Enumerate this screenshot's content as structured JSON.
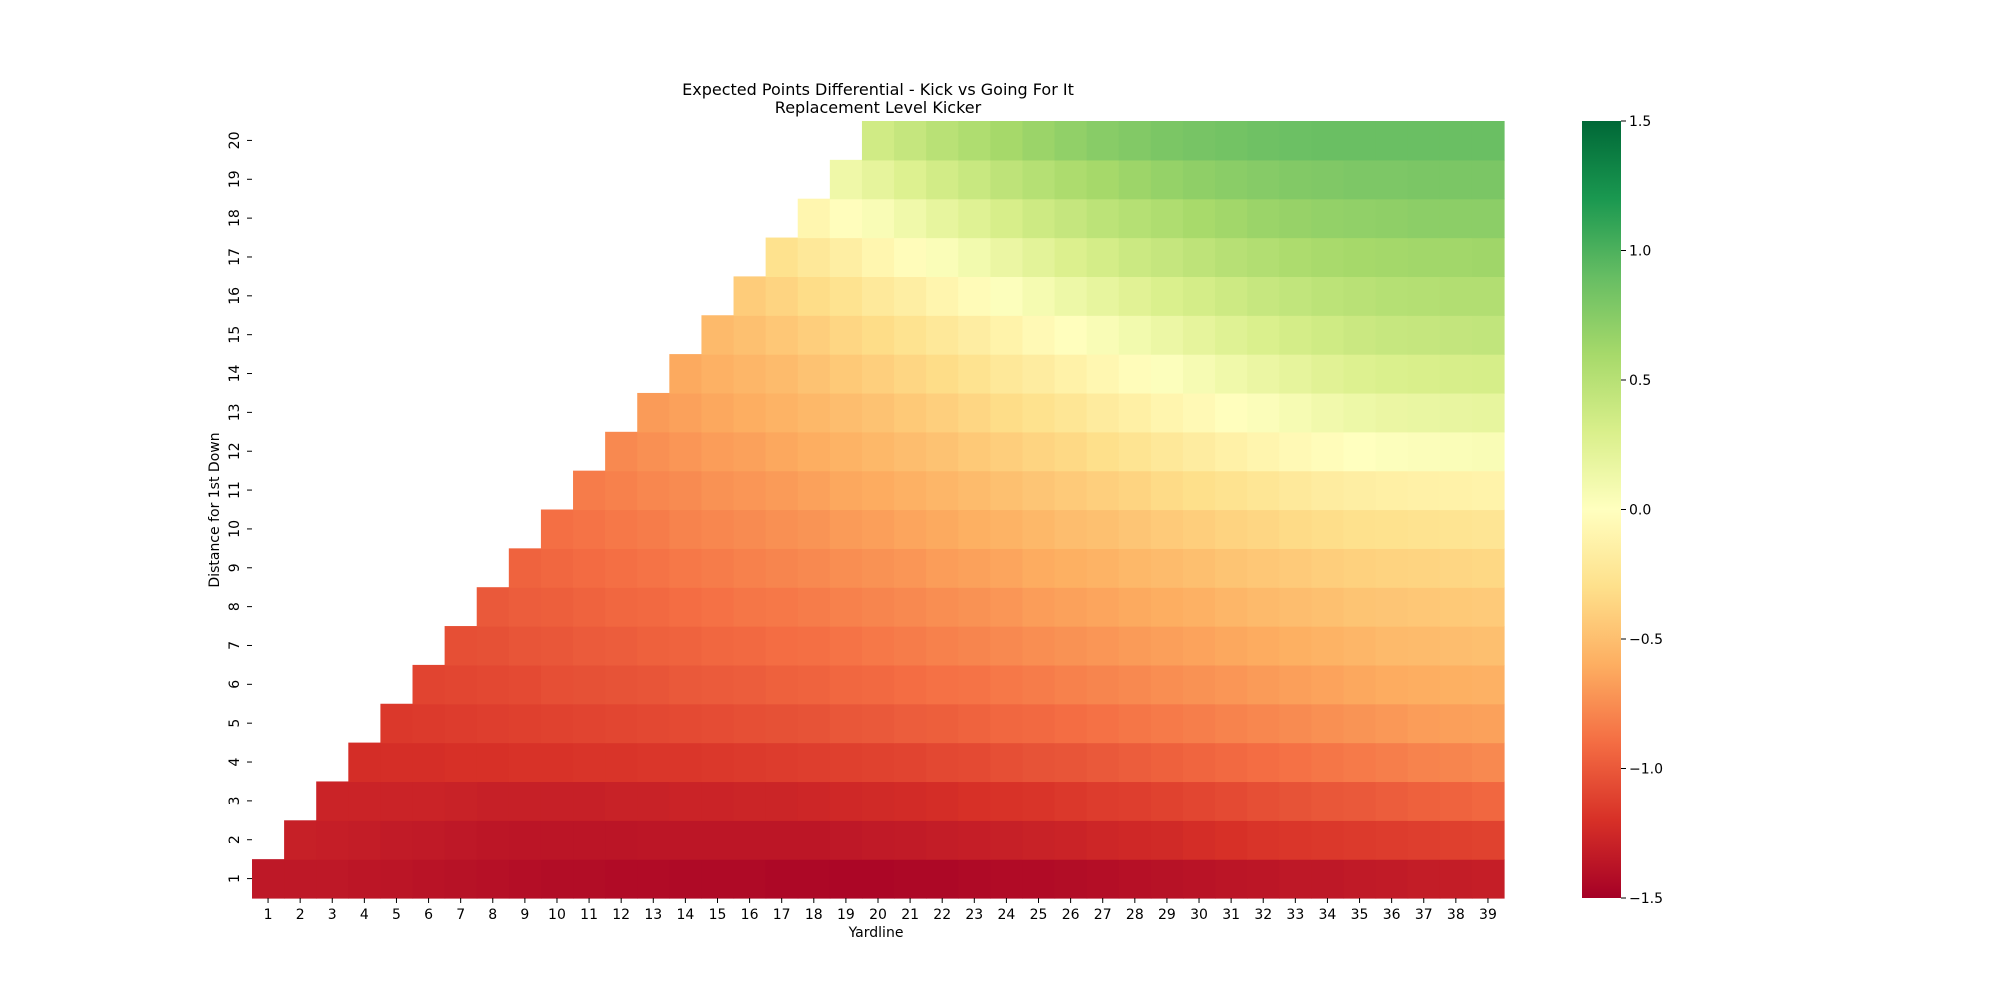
{
  "chart_data": {
    "type": "heatmap",
    "title": "Expected Points Differential - Kick vs Going For It",
    "subtitle": "Replacement Level Kicker",
    "xlabel": "Yardline",
    "ylabel": "Distance for 1st Down",
    "x": [
      1,
      2,
      3,
      4,
      5,
      6,
      7,
      8,
      9,
      10,
      11,
      12,
      13,
      14,
      15,
      16,
      17,
      18,
      19,
      20,
      21,
      22,
      23,
      24,
      25,
      26,
      27,
      28,
      29,
      30,
      31,
      32,
      33,
      34,
      35,
      36,
      37,
      38,
      39
    ],
    "y": [
      1,
      2,
      3,
      4,
      5,
      6,
      7,
      8,
      9,
      10,
      11,
      12,
      13,
      14,
      15,
      16,
      17,
      18,
      19,
      20
    ],
    "cells_shown_rule": "yardline >= distance",
    "colormap": "RdYlGn",
    "vmin": -1.5,
    "vmax": 1.5,
    "colorbar_ticks": [
      "1.5",
      "1.0",
      "0.5",
      "0.0",
      "−0.5",
      "−1.0",
      "−1.5"
    ],
    "colorbar_tick_values": [
      1.5,
      1.0,
      0.5,
      0.0,
      -0.5,
      -1.0,
      -1.5
    ],
    "rows": {
      "1": [
        -1.35,
        -1.35,
        -1.35,
        -1.36,
        -1.37,
        -1.38,
        -1.39,
        -1.4,
        -1.41,
        -1.42,
        -1.42,
        -1.43,
        -1.43,
        -1.44,
        -1.44,
        -1.44,
        -1.45,
        -1.45,
        -1.46,
        -1.46,
        -1.45,
        -1.45,
        -1.44,
        -1.43,
        -1.43,
        -1.42,
        -1.41,
        -1.4,
        -1.39,
        -1.38,
        -1.37,
        -1.36,
        -1.35,
        -1.35,
        -1.34,
        -1.33,
        -1.32,
        -1.32,
        -1.31
      ],
      "2": [
        null,
        -1.3,
        -1.31,
        -1.32,
        -1.33,
        -1.34,
        -1.35,
        -1.36,
        -1.37,
        -1.37,
        -1.37,
        -1.37,
        -1.36,
        -1.36,
        -1.36,
        -1.36,
        -1.36,
        -1.36,
        -1.35,
        -1.34,
        -1.33,
        -1.32,
        -1.31,
        -1.3,
        -1.29,
        -1.28,
        -1.26,
        -1.25,
        -1.24,
        -1.22,
        -1.2,
        -1.18,
        -1.17,
        -1.16,
        -1.15,
        -1.14,
        -1.13,
        -1.12,
        -1.11
      ],
      "3": [
        null,
        null,
        -1.28,
        -1.28,
        -1.28,
        -1.28,
        -1.29,
        -1.3,
        -1.3,
        -1.3,
        -1.3,
        -1.29,
        -1.29,
        -1.28,
        -1.28,
        -1.27,
        -1.27,
        -1.26,
        -1.25,
        -1.24,
        -1.23,
        -1.22,
        -1.2,
        -1.19,
        -1.18,
        -1.16,
        -1.14,
        -1.13,
        -1.11,
        -1.09,
        -1.07,
        -1.05,
        -1.03,
        -1.01,
        -1.0,
        -0.98,
        -0.96,
        -0.95,
        -0.93
      ],
      "4": [
        null,
        null,
        null,
        -1.22,
        -1.21,
        -1.21,
        -1.2,
        -1.2,
        -1.19,
        -1.19,
        -1.18,
        -1.18,
        -1.17,
        -1.17,
        -1.16,
        -1.15,
        -1.14,
        -1.13,
        -1.12,
        -1.11,
        -1.1,
        -1.08,
        -1.07,
        -1.05,
        -1.03,
        -1.02,
        -1.0,
        -0.98,
        -0.96,
        -0.94,
        -0.92,
        -0.9,
        -0.88,
        -0.86,
        -0.84,
        -0.82,
        -0.8,
        -0.79,
        -0.77
      ],
      "5": [
        null,
        null,
        null,
        null,
        -1.16,
        -1.15,
        -1.14,
        -1.13,
        -1.12,
        -1.11,
        -1.1,
        -1.09,
        -1.08,
        -1.07,
        -1.06,
        -1.05,
        -1.04,
        -1.03,
        -1.01,
        -1.0,
        -0.98,
        -0.97,
        -0.95,
        -0.93,
        -0.92,
        -0.9,
        -0.88,
        -0.86,
        -0.84,
        -0.82,
        -0.8,
        -0.78,
        -0.76,
        -0.74,
        -0.72,
        -0.7,
        -0.68,
        -0.67,
        -0.66
      ],
      "6": [
        null,
        null,
        null,
        null,
        null,
        -1.1,
        -1.09,
        -1.08,
        -1.07,
        -1.05,
        -1.04,
        -1.03,
        -1.02,
        -1.0,
        -0.99,
        -0.98,
        -0.96,
        -0.95,
        -0.93,
        -0.92,
        -0.9,
        -0.88,
        -0.87,
        -0.85,
        -0.83,
        -0.81,
        -0.79,
        -0.77,
        -0.75,
        -0.73,
        -0.71,
        -0.69,
        -0.67,
        -0.65,
        -0.63,
        -0.61,
        -0.6,
        -0.59,
        -0.58
      ],
      "7": [
        null,
        null,
        null,
        null,
        null,
        null,
        -1.05,
        -1.04,
        -1.02,
        -1.01,
        -0.99,
        -0.98,
        -0.96,
        -0.95,
        -0.93,
        -0.92,
        -0.9,
        -0.89,
        -0.87,
        -0.85,
        -0.83,
        -0.81,
        -0.79,
        -0.77,
        -0.75,
        -0.73,
        -0.71,
        -0.69,
        -0.67,
        -0.65,
        -0.63,
        -0.61,
        -0.59,
        -0.57,
        -0.55,
        -0.53,
        -0.52,
        -0.51,
        -0.5
      ],
      "8": [
        null,
        null,
        null,
        null,
        null,
        null,
        null,
        -1.0,
        -0.98,
        -0.97,
        -0.95,
        -0.93,
        -0.92,
        -0.9,
        -0.88,
        -0.86,
        -0.85,
        -0.83,
        -0.81,
        -0.79,
        -0.77,
        -0.75,
        -0.73,
        -0.71,
        -0.68,
        -0.66,
        -0.64,
        -0.62,
        -0.6,
        -0.58,
        -0.55,
        -0.53,
        -0.51,
        -0.49,
        -0.47,
        -0.46,
        -0.45,
        -0.44,
        -0.43
      ],
      "9": [
        null,
        null,
        null,
        null,
        null,
        null,
        null,
        null,
        -0.95,
        -0.93,
        -0.91,
        -0.89,
        -0.87,
        -0.85,
        -0.83,
        -0.81,
        -0.79,
        -0.77,
        -0.75,
        -0.73,
        -0.71,
        -0.68,
        -0.66,
        -0.64,
        -0.61,
        -0.59,
        -0.57,
        -0.54,
        -0.52,
        -0.5,
        -0.47,
        -0.45,
        -0.43,
        -0.41,
        -0.39,
        -0.38,
        -0.37,
        -0.36,
        -0.35
      ],
      "10": [
        null,
        null,
        null,
        null,
        null,
        null,
        null,
        null,
        null,
        -0.89,
        -0.87,
        -0.85,
        -0.83,
        -0.8,
        -0.78,
        -0.76,
        -0.74,
        -0.72,
        -0.69,
        -0.67,
        -0.64,
        -0.62,
        -0.59,
        -0.57,
        -0.54,
        -0.51,
        -0.49,
        -0.46,
        -0.43,
        -0.41,
        -0.38,
        -0.36,
        -0.33,
        -0.31,
        -0.29,
        -0.28,
        -0.27,
        -0.26,
        -0.25
      ],
      "11": [
        null,
        null,
        null,
        null,
        null,
        null,
        null,
        null,
        null,
        null,
        -0.83,
        -0.81,
        -0.78,
        -0.76,
        -0.73,
        -0.71,
        -0.69,
        -0.66,
        -0.63,
        -0.61,
        -0.58,
        -0.55,
        -0.52,
        -0.49,
        -0.46,
        -0.43,
        -0.4,
        -0.37,
        -0.33,
        -0.3,
        -0.27,
        -0.24,
        -0.21,
        -0.18,
        -0.16,
        -0.15,
        -0.14,
        -0.13,
        -0.12
      ],
      "12": [
        null,
        null,
        null,
        null,
        null,
        null,
        null,
        null,
        null,
        null,
        null,
        -0.77,
        -0.74,
        -0.71,
        -0.68,
        -0.66,
        -0.63,
        -0.6,
        -0.57,
        -0.54,
        -0.51,
        -0.48,
        -0.44,
        -0.41,
        -0.37,
        -0.34,
        -0.3,
        -0.26,
        -0.22,
        -0.18,
        -0.14,
        -0.1,
        -0.06,
        -0.03,
        0.0,
        0.02,
        0.03,
        0.04,
        0.05
      ],
      "13": [
        null,
        null,
        null,
        null,
        null,
        null,
        null,
        null,
        null,
        null,
        null,
        null,
        -0.69,
        -0.66,
        -0.63,
        -0.6,
        -0.57,
        -0.54,
        -0.51,
        -0.48,
        -0.44,
        -0.4,
        -0.36,
        -0.32,
        -0.28,
        -0.24,
        -0.19,
        -0.15,
        -0.1,
        -0.06,
        -0.01,
        0.03,
        0.07,
        0.11,
        0.14,
        0.16,
        0.17,
        0.18,
        0.19
      ],
      "14": [
        null,
        null,
        null,
        null,
        null,
        null,
        null,
        null,
        null,
        null,
        null,
        null,
        null,
        -0.62,
        -0.58,
        -0.55,
        -0.52,
        -0.48,
        -0.44,
        -0.4,
        -0.36,
        -0.32,
        -0.27,
        -0.22,
        -0.18,
        -0.13,
        -0.08,
        -0.03,
        0.02,
        0.07,
        0.12,
        0.16,
        0.2,
        0.24,
        0.27,
        0.29,
        0.3,
        0.31,
        0.32
      ],
      "15": [
        null,
        null,
        null,
        null,
        null,
        null,
        null,
        null,
        null,
        null,
        null,
        null,
        null,
        null,
        -0.53,
        -0.49,
        -0.45,
        -0.41,
        -0.36,
        -0.32,
        -0.27,
        -0.22,
        -0.17,
        -0.12,
        -0.06,
        -0.01,
        0.05,
        0.1,
        0.15,
        0.2,
        0.25,
        0.29,
        0.33,
        0.36,
        0.39,
        0.41,
        0.42,
        0.43,
        0.44
      ],
      "16": [
        null,
        null,
        null,
        null,
        null,
        null,
        null,
        null,
        null,
        null,
        null,
        null,
        null,
        null,
        null,
        -0.42,
        -0.37,
        -0.32,
        -0.27,
        -0.21,
        -0.16,
        -0.1,
        -0.04,
        0.02,
        0.08,
        0.14,
        0.19,
        0.24,
        0.29,
        0.33,
        0.37,
        0.41,
        0.44,
        0.47,
        0.49,
        0.51,
        0.52,
        0.53,
        0.53
      ],
      "17": [
        null,
        null,
        null,
        null,
        null,
        null,
        null,
        null,
        null,
        null,
        null,
        null,
        null,
        null,
        null,
        null,
        -0.28,
        -0.22,
        -0.16,
        -0.09,
        -0.03,
        0.04,
        0.1,
        0.16,
        0.22,
        0.28,
        0.33,
        0.38,
        0.42,
        0.46,
        0.5,
        0.53,
        0.56,
        0.58,
        0.6,
        0.61,
        0.62,
        0.62,
        0.63
      ],
      "18": [
        null,
        null,
        null,
        null,
        null,
        null,
        null,
        null,
        null,
        null,
        null,
        null,
        null,
        null,
        null,
        null,
        null,
        -0.09,
        -0.02,
        0.05,
        0.12,
        0.19,
        0.25,
        0.31,
        0.37,
        0.42,
        0.47,
        0.51,
        0.55,
        0.59,
        0.62,
        0.65,
        0.67,
        0.69,
        0.7,
        0.71,
        0.72,
        0.72,
        0.72
      ],
      "19": [
        null,
        null,
        null,
        null,
        null,
        null,
        null,
        null,
        null,
        null,
        null,
        null,
        null,
        null,
        null,
        null,
        null,
        null,
        0.13,
        0.2,
        0.27,
        0.34,
        0.4,
        0.46,
        0.51,
        0.56,
        0.6,
        0.64,
        0.68,
        0.71,
        0.73,
        0.75,
        0.77,
        0.78,
        0.79,
        0.79,
        0.8,
        0.8,
        0.8
      ],
      "20": [
        null,
        null,
        null,
        null,
        null,
        null,
        null,
        null,
        null,
        null,
        null,
        null,
        null,
        null,
        null,
        null,
        null,
        null,
        null,
        0.35,
        0.42,
        0.49,
        0.55,
        0.6,
        0.65,
        0.7,
        0.74,
        0.77,
        0.8,
        0.82,
        0.84,
        0.86,
        0.87,
        0.88,
        0.88,
        0.88,
        0.88,
        0.88,
        0.88
      ]
    }
  }
}
